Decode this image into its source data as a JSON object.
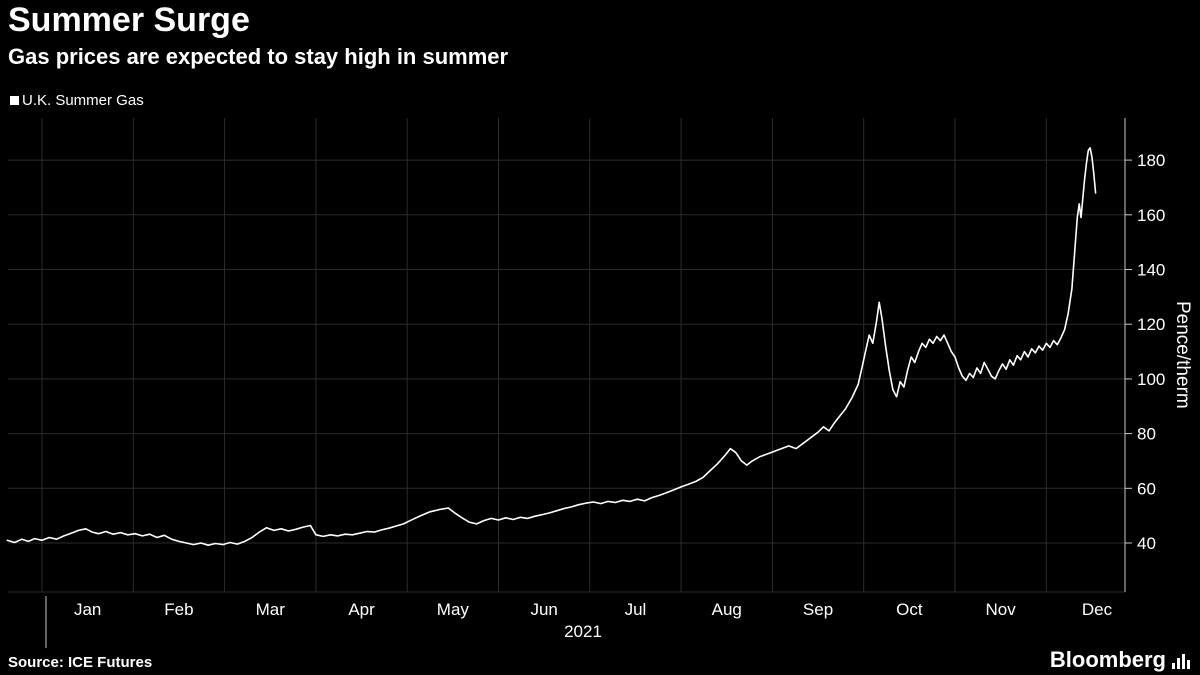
{
  "header": {
    "title": "Summer Surge",
    "subtitle": "Gas prices are expected to stay high in summer"
  },
  "legend": {
    "series_label": "U.K. Summer Gas",
    "marker_color": "#ffffff"
  },
  "chart_data": {
    "type": "line",
    "title": "Summer Surge",
    "subtitle": "Gas prices are expected to stay high in summer",
    "legend_position": "top-left",
    "grid": true,
    "x_axis": {
      "year_label": "2021",
      "tick_labels": [
        "Jan",
        "Feb",
        "Mar",
        "Apr",
        "May",
        "Jun",
        "Jul",
        "Aug",
        "Sep",
        "Oct",
        "Nov",
        "Dec"
      ],
      "range_months": [
        -0.38,
        11.86
      ]
    },
    "y_axis": {
      "label": "Pence/therm",
      "ticks": [
        40,
        60,
        80,
        100,
        120,
        140,
        160,
        180
      ],
      "range": [
        22,
        196
      ]
    },
    "series": [
      {
        "name": "U.K. Summer Gas",
        "color": "#ffffff",
        "unit": "pence/therm",
        "points": [
          [
            -0.38,
            41
          ],
          [
            -0.3,
            40.2
          ],
          [
            -0.22,
            41.4
          ],
          [
            -0.15,
            40.6
          ],
          [
            -0.08,
            41.6
          ],
          [
            0.0,
            41.0
          ],
          [
            0.08,
            42.0
          ],
          [
            0.16,
            41.4
          ],
          [
            0.24,
            42.6
          ],
          [
            0.32,
            43.6
          ],
          [
            0.4,
            44.6
          ],
          [
            0.48,
            45.2
          ],
          [
            0.55,
            44.0
          ],
          [
            0.62,
            43.4
          ],
          [
            0.7,
            44.2
          ],
          [
            0.78,
            43.2
          ],
          [
            0.86,
            43.8
          ],
          [
            0.94,
            43.0
          ],
          [
            1.02,
            43.4
          ],
          [
            1.1,
            42.6
          ],
          [
            1.18,
            43.2
          ],
          [
            1.26,
            42.0
          ],
          [
            1.34,
            42.8
          ],
          [
            1.42,
            41.4
          ],
          [
            1.5,
            40.6
          ],
          [
            1.58,
            40.0
          ],
          [
            1.66,
            39.4
          ],
          [
            1.74,
            40.0
          ],
          [
            1.82,
            39.2
          ],
          [
            1.9,
            39.8
          ],
          [
            1.98,
            39.4
          ],
          [
            2.06,
            40.2
          ],
          [
            2.14,
            39.6
          ],
          [
            2.22,
            40.6
          ],
          [
            2.3,
            42.0
          ],
          [
            2.38,
            44.0
          ],
          [
            2.46,
            45.6
          ],
          [
            2.54,
            44.6
          ],
          [
            2.62,
            45.2
          ],
          [
            2.7,
            44.4
          ],
          [
            2.78,
            45.0
          ],
          [
            2.86,
            45.8
          ],
          [
            2.94,
            46.4
          ],
          [
            3.0,
            43.0
          ],
          [
            3.08,
            42.4
          ],
          [
            3.16,
            43.0
          ],
          [
            3.24,
            42.6
          ],
          [
            3.32,
            43.2
          ],
          [
            3.4,
            43.0
          ],
          [
            3.48,
            43.6
          ],
          [
            3.56,
            44.2
          ],
          [
            3.64,
            44.0
          ],
          [
            3.72,
            44.8
          ],
          [
            3.8,
            45.4
          ],
          [
            3.88,
            46.2
          ],
          [
            3.96,
            47.0
          ],
          [
            4.05,
            48.5
          ],
          [
            4.15,
            50.0
          ],
          [
            4.25,
            51.4
          ],
          [
            4.35,
            52.2
          ],
          [
            4.45,
            52.8
          ],
          [
            4.52,
            51.0
          ],
          [
            4.6,
            49.2
          ],
          [
            4.68,
            47.6
          ],
          [
            4.76,
            47.0
          ],
          [
            4.84,
            48.2
          ],
          [
            4.92,
            49.0
          ],
          [
            5.0,
            48.4
          ],
          [
            5.08,
            49.2
          ],
          [
            5.16,
            48.6
          ],
          [
            5.24,
            49.4
          ],
          [
            5.32,
            49.0
          ],
          [
            5.4,
            49.8
          ],
          [
            5.48,
            50.4
          ],
          [
            5.56,
            51.0
          ],
          [
            5.64,
            51.8
          ],
          [
            5.72,
            52.6
          ],
          [
            5.8,
            53.2
          ],
          [
            5.88,
            54.0
          ],
          [
            5.96,
            54.6
          ],
          [
            6.04,
            55.0
          ],
          [
            6.12,
            54.4
          ],
          [
            6.2,
            55.2
          ],
          [
            6.28,
            54.8
          ],
          [
            6.36,
            55.6
          ],
          [
            6.44,
            55.2
          ],
          [
            6.52,
            56.0
          ],
          [
            6.6,
            55.4
          ],
          [
            6.68,
            56.6
          ],
          [
            6.76,
            57.4
          ],
          [
            6.84,
            58.4
          ],
          [
            6.92,
            59.4
          ],
          [
            7.0,
            60.5
          ],
          [
            7.08,
            61.5
          ],
          [
            7.16,
            62.5
          ],
          [
            7.24,
            64.0
          ],
          [
            7.32,
            66.5
          ],
          [
            7.4,
            69.0
          ],
          [
            7.48,
            72.0
          ],
          [
            7.54,
            74.5
          ],
          [
            7.6,
            73.0
          ],
          [
            7.66,
            70.0
          ],
          [
            7.72,
            68.5
          ],
          [
            7.78,
            70.0
          ],
          [
            7.86,
            71.5
          ],
          [
            7.94,
            72.5
          ],
          [
            8.02,
            73.5
          ],
          [
            8.1,
            74.5
          ],
          [
            8.18,
            75.5
          ],
          [
            8.26,
            74.5
          ],
          [
            8.34,
            76.5
          ],
          [
            8.42,
            78.5
          ],
          [
            8.5,
            80.5
          ],
          [
            8.56,
            82.5
          ],
          [
            8.62,
            81.0
          ],
          [
            8.68,
            84.0
          ],
          [
            8.74,
            86.5
          ],
          [
            8.8,
            89.0
          ],
          [
            8.87,
            93.0
          ],
          [
            8.94,
            98.0
          ],
          [
            8.98,
            104
          ],
          [
            9.02,
            110
          ],
          [
            9.06,
            116
          ],
          [
            9.1,
            113
          ],
          [
            9.14,
            121
          ],
          [
            9.17,
            128
          ],
          [
            9.2,
            122
          ],
          [
            9.24,
            112
          ],
          [
            9.28,
            103
          ],
          [
            9.32,
            96
          ],
          [
            9.36,
            93.5
          ],
          [
            9.4,
            99
          ],
          [
            9.44,
            97
          ],
          [
            9.48,
            103
          ],
          [
            9.52,
            108
          ],
          [
            9.56,
            106
          ],
          [
            9.6,
            110
          ],
          [
            9.64,
            113
          ],
          [
            9.68,
            111.5
          ],
          [
            9.72,
            114.5
          ],
          [
            9.76,
            113
          ],
          [
            9.8,
            115.5
          ],
          [
            9.84,
            114
          ],
          [
            9.88,
            116
          ],
          [
            9.92,
            113
          ],
          [
            9.96,
            110
          ],
          [
            10.0,
            108
          ],
          [
            10.04,
            104
          ],
          [
            10.08,
            101
          ],
          [
            10.12,
            99.5
          ],
          [
            10.16,
            102
          ],
          [
            10.2,
            100.5
          ],
          [
            10.24,
            104
          ],
          [
            10.28,
            102
          ],
          [
            10.32,
            106
          ],
          [
            10.36,
            103.5
          ],
          [
            10.4,
            101
          ],
          [
            10.44,
            100
          ],
          [
            10.48,
            103
          ],
          [
            10.52,
            105.5
          ],
          [
            10.56,
            103.5
          ],
          [
            10.6,
            107
          ],
          [
            10.64,
            105
          ],
          [
            10.68,
            108.5
          ],
          [
            10.72,
            107
          ],
          [
            10.76,
            110
          ],
          [
            10.8,
            108
          ],
          [
            10.84,
            111
          ],
          [
            10.88,
            109.5
          ],
          [
            10.92,
            112
          ],
          [
            10.96,
            110.5
          ],
          [
            11.0,
            113
          ],
          [
            11.04,
            111.5
          ],
          [
            11.08,
            114
          ],
          [
            11.12,
            112.5
          ],
          [
            11.16,
            115
          ],
          [
            11.2,
            118
          ],
          [
            11.24,
            124
          ],
          [
            11.28,
            133
          ],
          [
            11.31,
            146
          ],
          [
            11.34,
            159
          ],
          [
            11.36,
            164
          ],
          [
            11.38,
            159
          ],
          [
            11.4,
            166
          ],
          [
            11.42,
            173
          ],
          [
            11.44,
            179
          ],
          [
            11.46,
            183.5
          ],
          [
            11.48,
            184.5
          ],
          [
            11.5,
            181
          ],
          [
            11.52,
            175
          ],
          [
            11.54,
            168
          ]
        ]
      }
    ]
  },
  "footer": {
    "source": "Source: ICE Futures",
    "brand": "Bloomberg"
  },
  "colors": {
    "background": "#000000",
    "grid": "#2c2c2c",
    "axis": "#c8c8c8",
    "text": "#ffffff",
    "line": "#ffffff"
  }
}
